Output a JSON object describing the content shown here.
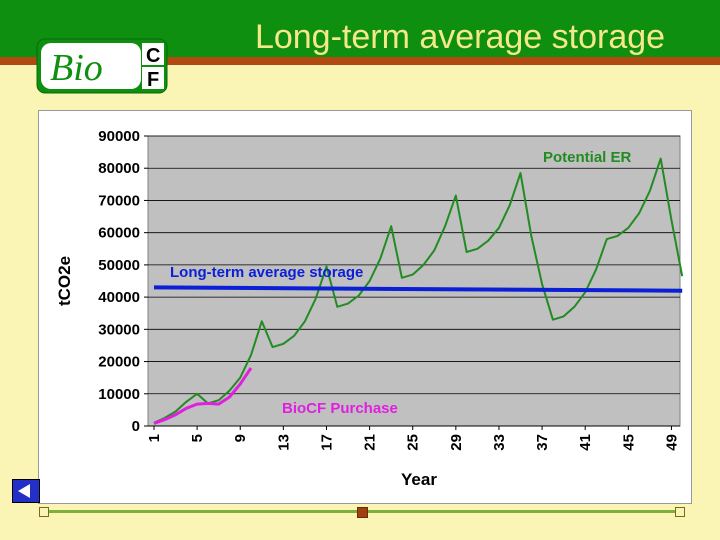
{
  "slide": {
    "title": "Long-term average storage",
    "logo": {
      "text_main": "Bio",
      "text_c": "C",
      "text_f": "F"
    }
  },
  "colors": {
    "header_green": "#0F8F0F",
    "header_stripe": "#B04A10",
    "background": "#FBF5B5",
    "title_text": "#F5E88A",
    "plot_area": "#C0C0C0",
    "potential_er": "#228B22",
    "long_term_avg": "#0A1FD6",
    "biocf_purchase": "#E020E0"
  },
  "chart_data": {
    "type": "line",
    "title": "",
    "xlabel": "Year",
    "ylabel": "tCO2e",
    "ylim": [
      0,
      90000
    ],
    "xlim": [
      1,
      50
    ],
    "grid": true,
    "yticks": [
      0,
      10000,
      20000,
      30000,
      40000,
      50000,
      60000,
      70000,
      80000,
      90000
    ],
    "xticks": [
      1,
      5,
      9,
      13,
      17,
      21,
      25,
      29,
      33,
      37,
      41,
      45,
      49
    ],
    "series": [
      {
        "name": "Potential ER",
        "color": "#228B22",
        "x": [
          1,
          2,
          3,
          4,
          5,
          6,
          7,
          8,
          9,
          10,
          11,
          12,
          13,
          14,
          15,
          16,
          17,
          18,
          19,
          20,
          21,
          22,
          23,
          24,
          25,
          26,
          27,
          28,
          29,
          30,
          31,
          32,
          33,
          34,
          35,
          36,
          37,
          38,
          39,
          40,
          41,
          42,
          43,
          44,
          45,
          46,
          47,
          48,
          49,
          50
        ],
        "y": [
          1000,
          2500,
          4500,
          7500,
          10000,
          7000,
          8000,
          11000,
          15000,
          22000,
          32500,
          24500,
          25500,
          28000,
          32500,
          39500,
          49500,
          37000,
          38000,
          40500,
          45000,
          52000,
          62000,
          46000,
          47000,
          50000,
          54500,
          62000,
          71500,
          54000,
          55000,
          57500,
          61500,
          68500,
          78500,
          59000,
          44000,
          33000,
          34000,
          37000,
          41500,
          48500,
          58000,
          59000,
          61500,
          66000,
          73000,
          83000,
          64000,
          46500
        ]
      },
      {
        "name": "Long-term average storage",
        "color": "#0A1FD6",
        "x": [
          1,
          50
        ],
        "y": [
          43000,
          42000
        ]
      },
      {
        "name": "BioCF Purchase",
        "color": "#E020E0",
        "x": [
          1,
          2,
          3,
          4,
          5,
          6,
          7,
          8,
          9,
          10
        ],
        "y": [
          800,
          2000,
          3500,
          5500,
          6800,
          7000,
          6800,
          9000,
          13000,
          18000
        ]
      }
    ]
  }
}
